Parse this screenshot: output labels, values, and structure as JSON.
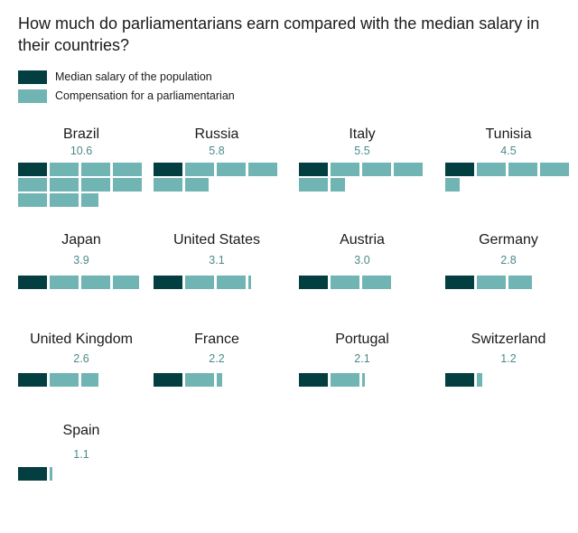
{
  "colors": {
    "median": "#033f40",
    "compensation": "#71b4b4",
    "value_text": "#4b8a8a"
  },
  "chart_data": {
    "type": "unit-block",
    "title": "How much do parliamentarians earn compared with the median salary in their countries?",
    "unit": "multiple of median salary",
    "legend": [
      {
        "key": "median",
        "label": "Median salary of the population"
      },
      {
        "key": "compensation",
        "label": "Compensation for a parliamentarian"
      }
    ],
    "blocks_per_row": 4,
    "countries": [
      {
        "name": "Brazil",
        "label": "10.6",
        "ratio": 10.6
      },
      {
        "name": "Russia",
        "label": "5.8",
        "ratio": 5.8
      },
      {
        "name": "Italy",
        "label": "5.5",
        "ratio": 5.5
      },
      {
        "name": "Tunisia",
        "label": "4.5",
        "ratio": 4.5
      },
      {
        "name": "Japan",
        "label": "3.9",
        "ratio": 3.9
      },
      {
        "name": "United States",
        "label": "3.1",
        "ratio": 3.1
      },
      {
        "name": "Austria",
        "label": "3.0",
        "ratio": 3.0
      },
      {
        "name": "Germany",
        "label": "2.8",
        "ratio": 2.8
      },
      {
        "name": "United Kingdom",
        "label": "2.6",
        "ratio": 2.6
      },
      {
        "name": "France",
        "label": "2.2",
        "ratio": 2.2
      },
      {
        "name": "Portugal",
        "label": "2.1",
        "ratio": 2.1
      },
      {
        "name": "Switzerland",
        "label": "1.2",
        "ratio": 1.2
      },
      {
        "name": "Spain",
        "label": "1.1",
        "ratio": 1.1
      }
    ]
  }
}
